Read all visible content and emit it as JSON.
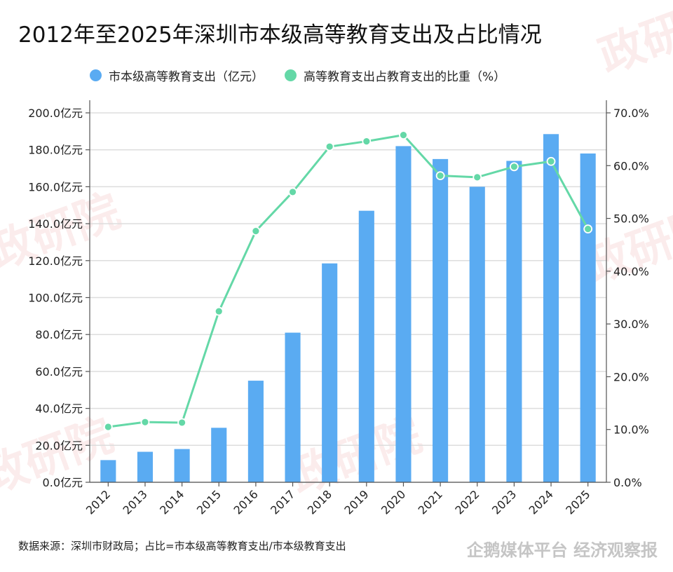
{
  "title": "2012年至2025年深圳市本级高等教育支出及占比情况",
  "legend": [
    {
      "label": "市本级高等教育支出（亿元）",
      "color": "#5aabf2"
    },
    {
      "label": "高等教育支出占教育支出的比重（%）",
      "color": "#64d8a7"
    }
  ],
  "source_note": "数据来源：深圳市财政局；占比=市本级高等教育支出/市本级教育支出",
  "footer_watermark": "企鹅媒体平台 经济观察报",
  "watermark_text": "政研院",
  "chart_data": {
    "type": "bar+line",
    "categories": [
      "2012",
      "2013",
      "2014",
      "2015",
      "2016",
      "2017",
      "2018",
      "2019",
      "2020",
      "2021",
      "2022",
      "2023",
      "2024",
      "2025"
    ],
    "series": [
      {
        "name": "市本级高等教育支出（亿元）",
        "type": "bar",
        "axis": "left",
        "color": "#5aabf2",
        "values": [
          12,
          16.5,
          18,
          29.5,
          55,
          81,
          118.5,
          147,
          182,
          175,
          160,
          174,
          188.5,
          178
        ]
      },
      {
        "name": "高等教育支出占教育支出的比重（%）",
        "type": "line",
        "axis": "right",
        "color": "#64d8a7",
        "values": [
          10.5,
          11.4,
          11.3,
          32.4,
          47.6,
          55.0,
          63.6,
          64.6,
          65.8,
          58.1,
          57.8,
          59.8,
          60.8,
          48.0
        ]
      }
    ],
    "left_axis": {
      "ylim": [
        0,
        200
      ],
      "ticks": [
        "0.0亿元",
        "20.0亿元",
        "40.0亿元",
        "60.0亿元",
        "80.0亿元",
        "100.0亿元",
        "120.0亿元",
        "140.0亿元",
        "160.0亿元",
        "180.0亿元",
        "200.0亿元"
      ]
    },
    "right_axis": {
      "ylim": [
        0,
        70
      ],
      "ticks": [
        "0.0%",
        "10.0%",
        "20.0%",
        "30.0%",
        "40.0%",
        "50.0%",
        "60.0%",
        "70.0%"
      ]
    },
    "grid": true
  }
}
